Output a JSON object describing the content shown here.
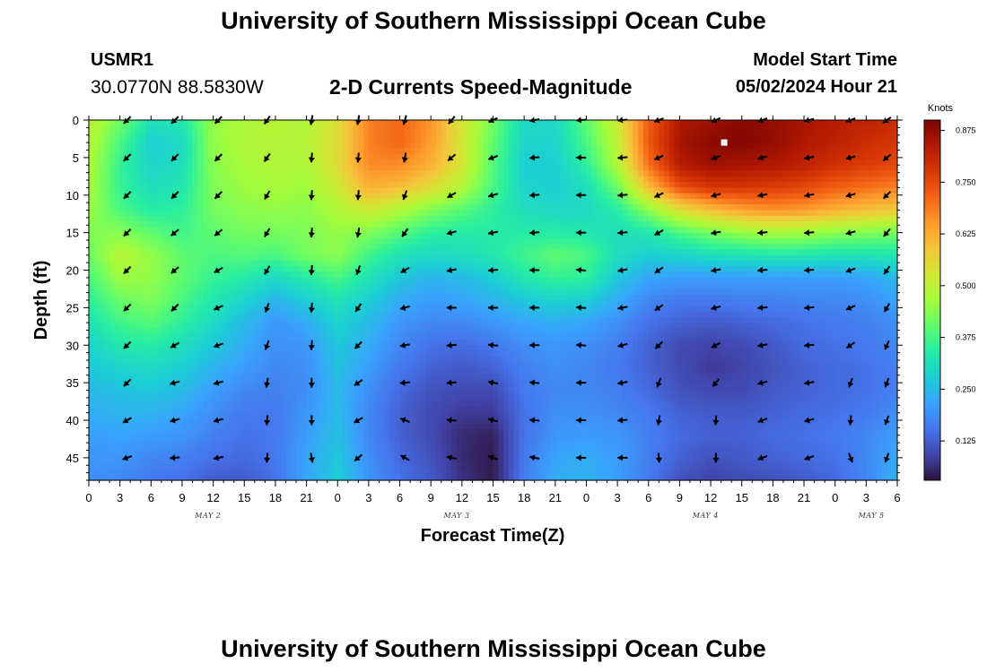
{
  "header": {
    "main_title": "University of Southern Mississippi Ocean Cube",
    "station_id": "USMR1",
    "station_coords": "30.0770N  88.5830W",
    "product_title": "2-D Currents Speed-Magnitude",
    "start_label": "Model Start Time",
    "start_value": "05/02/2024 Hour 21"
  },
  "footer": {
    "title": "University of Southern Mississippi Ocean Cube"
  },
  "chart_data": {
    "type": "heatmap",
    "title": "2-D Currents Speed-Magnitude",
    "xlabel": "Forecast Time(Z)",
    "ylabel": "Depth (ft)",
    "x_range_hours": [
      0,
      78
    ],
    "y_range_ft": [
      0,
      48
    ],
    "x_tick_labels": [
      "0",
      "3",
      "6",
      "9",
      "12",
      "15",
      "18",
      "21",
      "0",
      "3",
      "6",
      "9",
      "12",
      "15",
      "18",
      "21",
      "0",
      "3",
      "6",
      "9",
      "12",
      "15",
      "18",
      "21",
      "0",
      "3",
      "6"
    ],
    "y_tick_labels": [
      "0",
      "5",
      "10",
      "15",
      "20",
      "25",
      "30",
      "35",
      "40",
      "45"
    ],
    "day_labels": [
      {
        "label": "MAY 2",
        "hour": 11.5
      },
      {
        "label": "MAY 3",
        "hour": 35.5
      },
      {
        "label": "MAY 4",
        "hour": 59.5
      },
      {
        "label": "MAY 5",
        "hour": 75.5
      }
    ],
    "colorbar": {
      "unit": "Knots",
      "ticks": [
        "0.875",
        "0.750",
        "0.625",
        "0.500",
        "0.375",
        "0.250",
        "0.125"
      ],
      "tick_values": [
        0.875,
        0.75,
        0.625,
        0.5,
        0.375,
        0.25,
        0.125
      ],
      "range": [
        0.03,
        0.9
      ],
      "colors": [
        "#30123b",
        "#4145ab",
        "#4675ed",
        "#39a2fc",
        "#1bcfd4",
        "#24eca6",
        "#61fc6c",
        "#a4fc3b",
        "#d1e834",
        "#f3c63a",
        "#fe9b2d",
        "#f36315",
        "#d93806",
        "#b11901",
        "#7a0403"
      ]
    },
    "y_depths_ft": [
      0,
      3,
      6,
      9,
      12,
      15,
      18,
      21,
      24,
      27,
      30,
      33,
      36,
      39,
      42,
      45,
      48
    ],
    "x_hours": [
      0,
      3,
      6,
      9,
      12,
      15,
      18,
      21,
      24,
      27,
      30,
      33,
      36,
      39,
      42,
      45,
      48,
      51,
      54,
      57,
      60,
      63,
      66,
      69,
      72,
      75,
      78
    ],
    "speed_knots": [
      [
        0.5,
        0.42,
        0.32,
        0.33,
        0.45,
        0.48,
        0.49,
        0.48,
        0.55,
        0.68,
        0.71,
        0.66,
        0.53,
        0.42,
        0.3,
        0.3,
        0.4,
        0.52,
        0.72,
        0.84,
        0.86,
        0.88,
        0.87,
        0.85,
        0.83,
        0.82,
        0.8
      ],
      [
        0.49,
        0.38,
        0.28,
        0.3,
        0.45,
        0.48,
        0.49,
        0.49,
        0.55,
        0.68,
        0.71,
        0.65,
        0.53,
        0.4,
        0.29,
        0.29,
        0.38,
        0.5,
        0.73,
        0.85,
        0.88,
        0.89,
        0.87,
        0.84,
        0.82,
        0.8,
        0.78
      ],
      [
        0.48,
        0.36,
        0.29,
        0.31,
        0.44,
        0.47,
        0.48,
        0.48,
        0.55,
        0.67,
        0.67,
        0.62,
        0.53,
        0.39,
        0.28,
        0.28,
        0.35,
        0.48,
        0.7,
        0.83,
        0.86,
        0.85,
        0.84,
        0.82,
        0.79,
        0.77,
        0.75
      ],
      [
        0.47,
        0.36,
        0.31,
        0.33,
        0.43,
        0.46,
        0.47,
        0.46,
        0.52,
        0.62,
        0.6,
        0.55,
        0.48,
        0.38,
        0.29,
        0.28,
        0.31,
        0.41,
        0.6,
        0.74,
        0.78,
        0.78,
        0.77,
        0.75,
        0.72,
        0.7,
        0.68
      ],
      [
        0.46,
        0.38,
        0.34,
        0.35,
        0.42,
        0.44,
        0.45,
        0.44,
        0.48,
        0.52,
        0.48,
        0.43,
        0.39,
        0.35,
        0.31,
        0.3,
        0.3,
        0.34,
        0.44,
        0.54,
        0.6,
        0.64,
        0.66,
        0.65,
        0.62,
        0.6,
        0.58
      ],
      [
        0.43,
        0.44,
        0.4,
        0.37,
        0.4,
        0.42,
        0.42,
        0.43,
        0.45,
        0.43,
        0.39,
        0.35,
        0.34,
        0.34,
        0.34,
        0.34,
        0.33,
        0.31,
        0.33,
        0.38,
        0.42,
        0.45,
        0.47,
        0.46,
        0.44,
        0.43,
        0.42
      ],
      [
        0.41,
        0.49,
        0.45,
        0.4,
        0.38,
        0.39,
        0.38,
        0.42,
        0.44,
        0.37,
        0.32,
        0.3,
        0.31,
        0.33,
        0.37,
        0.4,
        0.38,
        0.31,
        0.28,
        0.29,
        0.31,
        0.32,
        0.33,
        0.33,
        0.32,
        0.32,
        0.33
      ],
      [
        0.38,
        0.46,
        0.45,
        0.4,
        0.36,
        0.34,
        0.3,
        0.34,
        0.38,
        0.32,
        0.27,
        0.24,
        0.25,
        0.28,
        0.33,
        0.36,
        0.35,
        0.27,
        0.22,
        0.21,
        0.21,
        0.21,
        0.21,
        0.21,
        0.21,
        0.22,
        0.25
      ],
      [
        0.35,
        0.41,
        0.43,
        0.38,
        0.33,
        0.29,
        0.24,
        0.28,
        0.32,
        0.28,
        0.23,
        0.21,
        0.22,
        0.24,
        0.27,
        0.29,
        0.28,
        0.23,
        0.18,
        0.16,
        0.16,
        0.17,
        0.17,
        0.18,
        0.18,
        0.19,
        0.22
      ],
      [
        0.32,
        0.37,
        0.39,
        0.35,
        0.3,
        0.25,
        0.2,
        0.23,
        0.29,
        0.25,
        0.2,
        0.18,
        0.18,
        0.2,
        0.22,
        0.23,
        0.22,
        0.19,
        0.15,
        0.13,
        0.12,
        0.13,
        0.14,
        0.15,
        0.16,
        0.17,
        0.19
      ],
      [
        0.29,
        0.33,
        0.34,
        0.31,
        0.27,
        0.23,
        0.19,
        0.2,
        0.27,
        0.23,
        0.18,
        0.15,
        0.14,
        0.16,
        0.19,
        0.2,
        0.19,
        0.17,
        0.13,
        0.1,
        0.09,
        0.1,
        0.12,
        0.14,
        0.15,
        0.16,
        0.18
      ],
      [
        0.27,
        0.29,
        0.3,
        0.28,
        0.24,
        0.21,
        0.18,
        0.19,
        0.26,
        0.21,
        0.16,
        0.13,
        0.12,
        0.13,
        0.17,
        0.19,
        0.18,
        0.16,
        0.13,
        0.1,
        0.08,
        0.09,
        0.11,
        0.13,
        0.14,
        0.15,
        0.17
      ],
      [
        0.25,
        0.26,
        0.27,
        0.25,
        0.21,
        0.18,
        0.17,
        0.19,
        0.25,
        0.19,
        0.14,
        0.11,
        0.1,
        0.1,
        0.16,
        0.18,
        0.18,
        0.17,
        0.14,
        0.11,
        0.1,
        0.1,
        0.12,
        0.13,
        0.14,
        0.15,
        0.17
      ],
      [
        0.23,
        0.24,
        0.24,
        0.22,
        0.19,
        0.16,
        0.16,
        0.2,
        0.25,
        0.18,
        0.13,
        0.1,
        0.08,
        0.08,
        0.15,
        0.19,
        0.19,
        0.18,
        0.16,
        0.13,
        0.12,
        0.12,
        0.13,
        0.14,
        0.15,
        0.16,
        0.19
      ],
      [
        0.21,
        0.22,
        0.21,
        0.2,
        0.17,
        0.15,
        0.16,
        0.21,
        0.26,
        0.18,
        0.13,
        0.1,
        0.06,
        0.05,
        0.15,
        0.2,
        0.21,
        0.2,
        0.17,
        0.14,
        0.13,
        0.13,
        0.14,
        0.15,
        0.16,
        0.18,
        0.21
      ],
      [
        0.2,
        0.2,
        0.18,
        0.17,
        0.15,
        0.14,
        0.16,
        0.22,
        0.27,
        0.19,
        0.14,
        0.11,
        0.06,
        0.04,
        0.16,
        0.22,
        0.23,
        0.21,
        0.17,
        0.13,
        0.11,
        0.12,
        0.13,
        0.14,
        0.15,
        0.18,
        0.23
      ],
      [
        0.19,
        0.18,
        0.16,
        0.15,
        0.12,
        0.12,
        0.15,
        0.22,
        0.28,
        0.2,
        0.15,
        0.12,
        0.07,
        0.04,
        0.17,
        0.23,
        0.24,
        0.21,
        0.16,
        0.11,
        0.09,
        0.1,
        0.11,
        0.12,
        0.14,
        0.18,
        0.24
      ]
    ],
    "arrow_columns": [
      {
        "hour": 3.7,
        "dirs": [
          225,
          225,
          225,
          225,
          225,
          225,
          225,
          225,
          240,
          250
        ]
      },
      {
        "hour": 8.3,
        "dirs": [
          225,
          225,
          225,
          230,
          230,
          225,
          240,
          255,
          255,
          265
        ]
      },
      {
        "hour": 12.5,
        "dirs": [
          225,
          225,
          225,
          230,
          240,
          245,
          250,
          255,
          255,
          260
        ]
      },
      {
        "hour": 17.2,
        "dirs": [
          215,
          215,
          210,
          210,
          210,
          200,
          200,
          190,
          185,
          185
        ]
      },
      {
        "hour": 21.5,
        "dirs": [
          190,
          185,
          185,
          185,
          185,
          185,
          185,
          180,
          180,
          170
        ]
      },
      {
        "hour": 26.0,
        "dirs": [
          190,
          185,
          185,
          190,
          200,
          215,
          225,
          235,
          240,
          230
        ]
      },
      {
        "hour": 30.5,
        "dirs": [
          195,
          190,
          200,
          215,
          240,
          255,
          260,
          265,
          290,
          300
        ]
      },
      {
        "hour": 35.0,
        "dirs": [
          220,
          230,
          240,
          255,
          260,
          270,
          265,
          265,
          275,
          280
        ]
      },
      {
        "hour": 39.0,
        "dirs": [
          245,
          250,
          255,
          260,
          265,
          270,
          275,
          280,
          285,
          290
        ]
      },
      {
        "hour": 43.0,
        "dirs": [
          260,
          265,
          265,
          265,
          270,
          270,
          270,
          275,
          275,
          280
        ]
      },
      {
        "hour": 47.5,
        "dirs": [
          265,
          270,
          270,
          270,
          275,
          275,
          275,
          270,
          270,
          270
        ]
      },
      {
        "hour": 51.5,
        "dirs": [
          265,
          265,
          265,
          265,
          260,
          260,
          255,
          260,
          265,
          270
        ]
      },
      {
        "hour": 55.0,
        "dirs": [
          250,
          245,
          245,
          240,
          235,
          235,
          225,
          200,
          190,
          175
        ]
      },
      {
        "hour": 60.5,
        "dirs": [
          245,
          250,
          255,
          260,
          260,
          255,
          240,
          220,
          185,
          180
        ]
      },
      {
        "hour": 65.0,
        "dirs": [
          250,
          255,
          260,
          265,
          265,
          265,
          260,
          255,
          250,
          250
        ]
      },
      {
        "hour": 69.5,
        "dirs": [
          255,
          260,
          260,
          265,
          265,
          265,
          265,
          260,
          255,
          250
        ]
      },
      {
        "hour": 73.5,
        "dirs": [
          250,
          255,
          255,
          255,
          250,
          245,
          235,
          200,
          185,
          160
        ]
      },
      {
        "hour": 77.0,
        "dirs": [
          235,
          230,
          225,
          220,
          215,
          210,
          205,
          200,
          200,
          200
        ]
      }
    ],
    "arrow_depths_ft": [
      0,
      5,
      10,
      15,
      20,
      25,
      30,
      35,
      40,
      45
    ],
    "marker": {
      "hour": 61.3,
      "depth_ft": 3
    }
  }
}
